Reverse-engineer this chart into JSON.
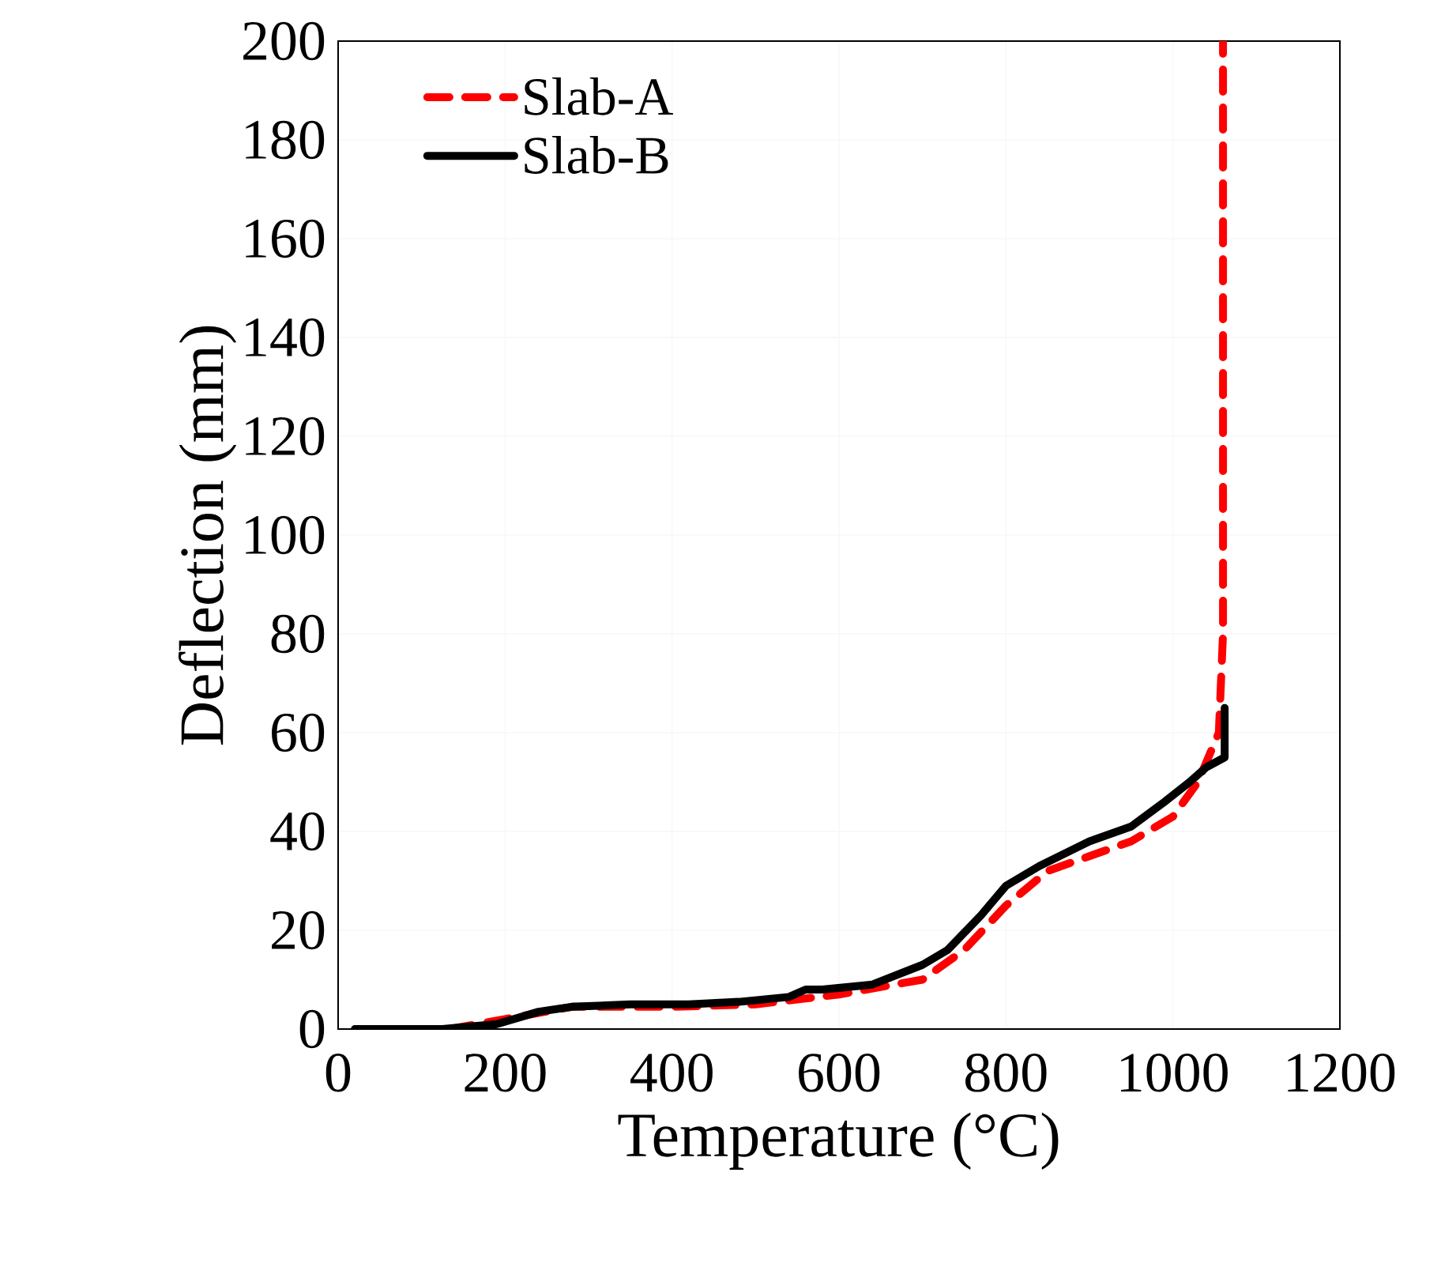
{
  "chart_data": {
    "type": "line",
    "xlabel": "Temperature (°C)",
    "ylabel": "Deflection (mm)",
    "xlim": [
      0,
      1200
    ],
    "ylim": [
      0,
      200
    ],
    "xticks": [
      0,
      200,
      400,
      600,
      800,
      1000,
      1200
    ],
    "yticks": [
      0,
      20,
      40,
      60,
      80,
      100,
      120,
      140,
      160,
      180,
      200
    ],
    "grid": true,
    "legend": "top left",
    "series": [
      {
        "name": "Slab-A",
        "color": "#ff0000",
        "line_style": "dashed",
        "x": [
          134,
          200,
          280,
          400,
          500,
          600,
          700,
          750,
          800,
          850,
          900,
          950,
          1000,
          1030,
          1055,
          1060,
          1060
        ],
        "values": [
          0,
          2,
          4.5,
          4.5,
          5,
          7,
          10,
          16,
          25,
          32,
          35,
          38,
          43,
          50,
          60,
          80,
          200
        ]
      },
      {
        "name": "Slab-B",
        "color": "#000000",
        "line_style": "solid",
        "x": [
          20,
          125,
          190,
          240,
          280,
          350,
          420,
          480,
          540,
          560,
          580,
          640,
          700,
          730,
          770,
          800,
          840,
          900,
          950,
          990,
          1020,
          1040,
          1062,
          1062
        ],
        "values": [
          0,
          0,
          1,
          3.5,
          4.5,
          5,
          5,
          5.5,
          6.5,
          8,
          8,
          9,
          13,
          16,
          23,
          29,
          33,
          38,
          41,
          46,
          50,
          53,
          55,
          65
        ]
      }
    ]
  }
}
